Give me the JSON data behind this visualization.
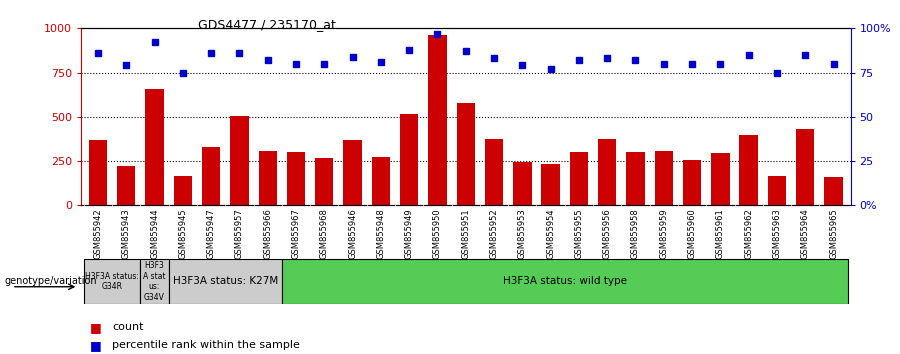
{
  "title": "GDS4477 / 235170_at",
  "categories": [
    "GSM855942",
    "GSM855943",
    "GSM855944",
    "GSM855945",
    "GSM855947",
    "GSM855957",
    "GSM855966",
    "GSM855967",
    "GSM855968",
    "GSM855946",
    "GSM855948",
    "GSM855949",
    "GSM855950",
    "GSM855951",
    "GSM855952",
    "GSM855953",
    "GSM855954",
    "GSM855955",
    "GSM855956",
    "GSM855958",
    "GSM855959",
    "GSM855960",
    "GSM855961",
    "GSM855962",
    "GSM855963",
    "GSM855964",
    "GSM855965"
  ],
  "bar_values": [
    370,
    220,
    660,
    165,
    330,
    505,
    305,
    300,
    265,
    370,
    275,
    515,
    960,
    580,
    375,
    245,
    235,
    300,
    375,
    300,
    305,
    255,
    295,
    395,
    165,
    430,
    160
  ],
  "dot_values": [
    86,
    79,
    92,
    75,
    86,
    86,
    82,
    80,
    80,
    84,
    81,
    88,
    97,
    87,
    83,
    79,
    77,
    82,
    83,
    82,
    80,
    80,
    80,
    85,
    75,
    85,
    80
  ],
  "bar_color": "#cc0000",
  "dot_color": "#0000cc",
  "ylim_left": [
    0,
    1000
  ],
  "ylim_right": [
    0,
    100
  ],
  "yticks_left": [
    0,
    250,
    500,
    750,
    1000
  ],
  "yticks_right": [
    0,
    25,
    50,
    75,
    100
  ],
  "yticklabels_left": [
    "0",
    "250",
    "500",
    "750",
    "1000"
  ],
  "yticklabels_right": [
    "0%",
    "25",
    "50",
    "75",
    "100%"
  ],
  "grid_values": [
    250,
    500,
    750
  ],
  "group_labels": [
    "H3F3A status:\nG34R",
    "H3F3\nA stat\nus:\nG34V",
    "H3F3A status: K27M",
    "H3F3A status: wild type"
  ],
  "group_spans": [
    2,
    1,
    4,
    20
  ],
  "group_colors": [
    "#cccccc",
    "#cccccc",
    "#cccccc",
    "#55cc55"
  ],
  "legend_count_label": "count",
  "legend_percentile_label": "percentile rank within the sample",
  "genotype_label": "genotype/variation"
}
